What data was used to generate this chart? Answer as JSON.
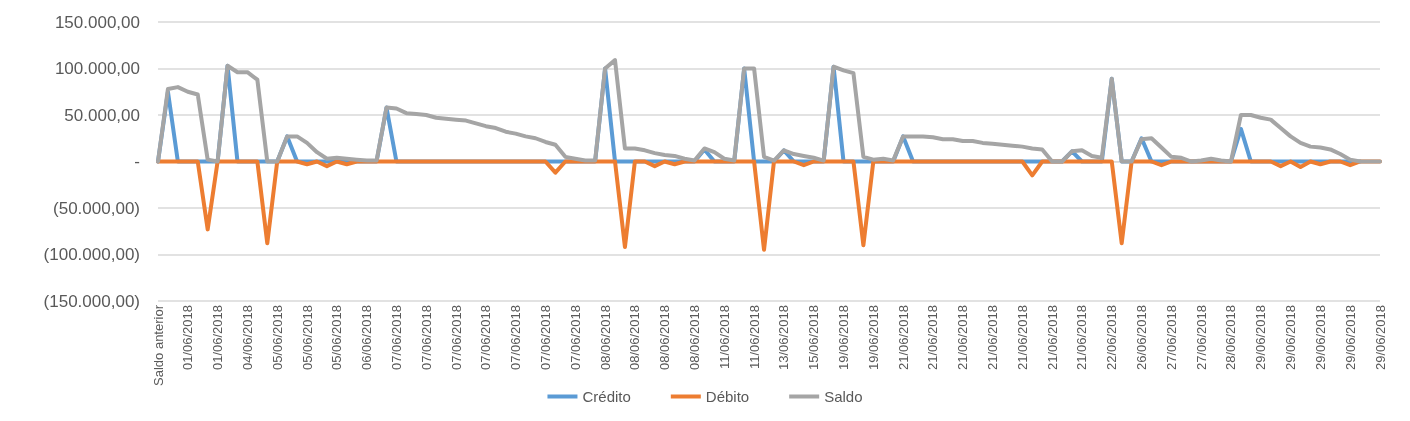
{
  "chart_data": {
    "type": "line",
    "categories": [
      "Saldo anterior",
      null,
      null,
      "01/06/2018",
      null,
      null,
      "01/06/2018",
      null,
      null,
      "04/06/2018",
      null,
      null,
      "05/06/2018",
      null,
      null,
      "05/06/2018",
      null,
      null,
      "05/06/2018",
      null,
      null,
      "06/06/2018",
      null,
      null,
      "07/06/2018",
      null,
      null,
      "07/06/2018",
      null,
      null,
      "07/06/2018",
      null,
      null,
      "07/06/2018",
      null,
      null,
      "07/06/2018",
      null,
      null,
      "07/06/2018",
      null,
      null,
      "07/06/2018",
      null,
      null,
      "08/06/2018",
      null,
      null,
      "08/06/2018",
      null,
      null,
      "08/06/2018",
      null,
      null,
      "08/06/2018",
      null,
      null,
      "11/06/2018",
      null,
      null,
      "11/06/2018",
      null,
      null,
      "13/06/2018",
      null,
      null,
      "15/06/2018",
      null,
      null,
      "19/06/2018",
      null,
      null,
      "19/06/2018",
      null,
      null,
      "21/06/2018",
      null,
      null,
      "21/06/2018",
      null,
      null,
      "21/06/2018",
      null,
      null,
      "21/06/2018",
      null,
      null,
      "21/06/2018",
      null,
      null,
      "21/06/2018",
      null,
      null,
      "21/06/2018",
      null,
      null,
      "22/06/2018",
      null,
      null,
      "26/06/2018",
      null,
      null,
      "27/06/2018",
      null,
      null,
      "27/06/2018",
      null,
      null,
      "28/06/2018",
      null,
      null,
      "29/06/2018",
      null,
      null,
      "29/06/2018",
      null,
      null,
      "29/06/2018",
      null,
      null,
      "29/06/2018",
      null,
      null,
      "29/06/2018"
    ],
    "series": [
      {
        "name": "Crédito",
        "color": "#5b9bd5",
        "values": [
          0,
          75000,
          0,
          0,
          0,
          0,
          0,
          103000,
          0,
          0,
          0,
          0,
          0,
          27000,
          0,
          0,
          0,
          0,
          0,
          0,
          0,
          0,
          0,
          58000,
          0,
          0,
          0,
          0,
          0,
          0,
          0,
          0,
          0,
          0,
          0,
          0,
          0,
          0,
          0,
          0,
          0,
          0,
          0,
          0,
          0,
          100000,
          0,
          0,
          0,
          0,
          0,
          0,
          0,
          0,
          0,
          13000,
          0,
          0,
          0,
          100000,
          0,
          0,
          0,
          12000,
          0,
          0,
          0,
          0,
          102000,
          0,
          0,
          0,
          0,
          0,
          0,
          27000,
          0,
          0,
          0,
          0,
          0,
          0,
          0,
          0,
          0,
          0,
          0,
          0,
          0,
          0,
          0,
          0,
          11000,
          0,
          0,
          0,
          89000,
          0,
          0,
          25000,
          0,
          0,
          0,
          0,
          0,
          0,
          0,
          0,
          0,
          35000,
          0,
          0,
          0,
          0,
          0,
          0,
          0,
          0,
          0,
          0,
          0,
          0,
          null,
          null
        ]
      },
      {
        "name": "Débito",
        "color": "#ed7d31",
        "values": [
          0,
          0,
          0,
          0,
          0,
          -73000,
          0,
          0,
          0,
          0,
          0,
          -88000,
          0,
          0,
          0,
          -3000,
          0,
          -5000,
          0,
          -3000,
          0,
          0,
          0,
          0,
          0,
          0,
          0,
          0,
          0,
          0,
          0,
          0,
          0,
          0,
          0,
          0,
          0,
          0,
          0,
          0,
          -12000,
          0,
          0,
          0,
          0,
          0,
          0,
          -92000,
          0,
          0,
          -5000,
          0,
          -3000,
          0,
          0,
          0,
          0,
          0,
          0,
          0,
          0,
          -95000,
          0,
          0,
          0,
          -4000,
          0,
          0,
          0,
          0,
          0,
          -90000,
          0,
          0,
          0,
          0,
          0,
          0,
          0,
          0,
          0,
          0,
          0,
          0,
          0,
          0,
          0,
          0,
          -15000,
          0,
          0,
          0,
          0,
          0,
          0,
          0,
          0,
          -88000,
          0,
          0,
          0,
          -4000,
          0,
          0,
          0,
          0,
          0,
          0,
          0,
          0,
          0,
          0,
          0,
          -5000,
          0,
          -6000,
          0,
          -3000,
          0,
          0,
          -4000,
          0,
          0,
          0
        ]
      },
      {
        "name": "Saldo",
        "color": "#a5a5a5",
        "values": [
          0,
          78000,
          80000,
          75000,
          72000,
          2000,
          0,
          103000,
          96000,
          96000,
          88000,
          0,
          0,
          27000,
          27000,
          20000,
          10000,
          3000,
          4000,
          3000,
          2000,
          1000,
          1000,
          58000,
          57000,
          52000,
          51000,
          50000,
          47000,
          46000,
          45000,
          44000,
          41000,
          38000,
          36000,
          32000,
          30000,
          27000,
          25000,
          21000,
          18000,
          5000,
          3000,
          1000,
          1000,
          100000,
          109000,
          14000,
          14000,
          12000,
          9000,
          7000,
          6000,
          3000,
          1000,
          14000,
          10000,
          3000,
          1000,
          100000,
          100000,
          5000,
          1000,
          12000,
          8000,
          6000,
          4000,
          1000,
          102000,
          98000,
          95000,
          5000,
          2000,
          3000,
          1000,
          27000,
          27000,
          27000,
          26000,
          24000,
          24000,
          22000,
          22000,
          20000,
          19000,
          18000,
          17000,
          16000,
          14000,
          13000,
          0,
          0,
          11000,
          12000,
          6000,
          4000,
          89000,
          0,
          0,
          24000,
          25000,
          15000,
          5000,
          4000,
          0,
          1000,
          3000,
          1000,
          0,
          50000,
          50000,
          47000,
          45000,
          36000,
          27000,
          20000,
          16000,
          15000,
          13000,
          8000,
          2000,
          0,
          0,
          0
        ]
      }
    ],
    "ylim": [
      -150000,
      150000
    ],
    "yticks": [
      {
        "value": -150000,
        "label": "(150.000,00)"
      },
      {
        "value": -100000,
        "label": "(100.000,00)"
      },
      {
        "value": -50000,
        "label": "(50.000,00)"
      },
      {
        "value": 0,
        "label": "-"
      },
      {
        "value": 50000,
        "label": "50.000,00"
      },
      {
        "value": 100000,
        "label": "100.000,00"
      },
      {
        "value": 150000,
        "label": "150.000,00"
      }
    ],
    "grid": "y",
    "legend": "bottom",
    "marker": "none",
    "line_style": "solid"
  }
}
